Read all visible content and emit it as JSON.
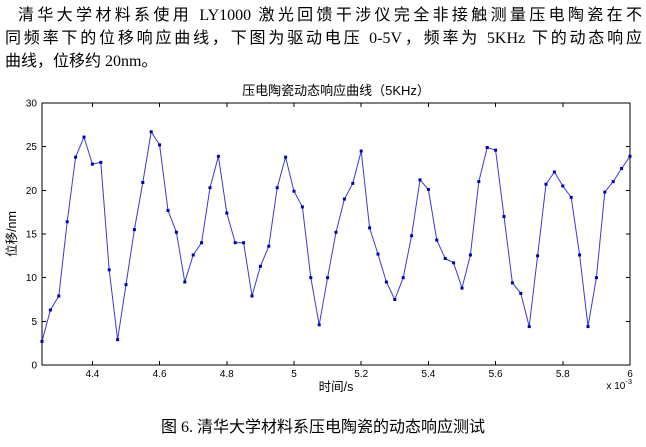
{
  "paragraph": {
    "lines": [
      "清华大学材料系使用 LY1000 激光回馈干涉仪完全非接触测量压电陶瓷在不",
      "同频率下的位移响应曲线，下图为驱动电压 0-5V，频率为 5KHz 下的动态响应",
      "曲线，位移约 20nm。"
    ]
  },
  "chart_data": {
    "type": "line",
    "title": "压电陶瓷动态响应曲线（5KHz）",
    "xlabel": "时间/s",
    "ylabel": "位移/nm",
    "x_offset_label": {
      "base": "x 10",
      "exp": "-3"
    },
    "xlim": [
      4.25,
      6.0
    ],
    "ylim": [
      0,
      30
    ],
    "xtick_values": [
      4.4,
      4.6,
      4.8,
      5.0,
      5.2,
      5.4,
      5.6,
      5.8,
      6.0
    ],
    "xtick_labels": [
      "4.4",
      "4.6",
      "4.8",
      "5",
      "5.2",
      "5.4",
      "5.6",
      "5.8",
      "6"
    ],
    "ytick_values": [
      0,
      5,
      10,
      15,
      20,
      25,
      30
    ],
    "ytick_labels": [
      "0",
      "5",
      "10",
      "15",
      "20",
      "25",
      "30"
    ],
    "grid": false,
    "line_color": "#3a3ad0",
    "marker_color": "#0000b4",
    "x": [
      4.25,
      4.275,
      4.3,
      4.325,
      4.35,
      4.375,
      4.4,
      4.425,
      4.45,
      4.475,
      4.5,
      4.525,
      4.55,
      4.575,
      4.6,
      4.625,
      4.65,
      4.675,
      4.7,
      4.725,
      4.75,
      4.775,
      4.8,
      4.825,
      4.85,
      4.875,
      4.9,
      4.925,
      4.95,
      4.975,
      5.0,
      5.025,
      5.05,
      5.075,
      5.1,
      5.125,
      5.15,
      5.175,
      5.2,
      5.225,
      5.25,
      5.275,
      5.3,
      5.325,
      5.35,
      5.375,
      5.4,
      5.425,
      5.45,
      5.475,
      5.5,
      5.525,
      5.55,
      5.575,
      5.6,
      5.625,
      5.65,
      5.675,
      5.7,
      5.725,
      5.75,
      5.775,
      5.8,
      5.825,
      5.85,
      5.875,
      5.9,
      5.925,
      5.95,
      5.975,
      6.0
    ],
    "y": [
      2.7,
      6.3,
      7.9,
      16.4,
      23.8,
      26.1,
      23.0,
      23.2,
      10.9,
      2.9,
      9.2,
      15.5,
      20.9,
      26.7,
      25.2,
      17.7,
      15.2,
      9.5,
      12.6,
      14.0,
      20.3,
      23.9,
      17.4,
      14.0,
      14.0,
      7.9,
      11.3,
      13.6,
      20.3,
      23.8,
      19.9,
      18.1,
      10.0,
      4.6,
      10.0,
      15.2,
      19.0,
      20.8,
      24.5,
      15.7,
      12.7,
      9.5,
      7.5,
      10.0,
      14.8,
      21.2,
      20.1,
      14.3,
      12.2,
      11.7,
      8.8,
      12.6,
      21.0,
      24.9,
      24.6,
      17.0,
      9.4,
      8.2,
      4.4,
      12.5,
      20.7,
      22.1,
      20.5,
      19.2,
      12.6,
      4.4,
      10.0,
      19.8,
      21.0,
      22.5,
      23.9
    ]
  },
  "caption": {
    "text": "图 6. 清华大学材料系压电陶瓷的动态响应测试"
  }
}
